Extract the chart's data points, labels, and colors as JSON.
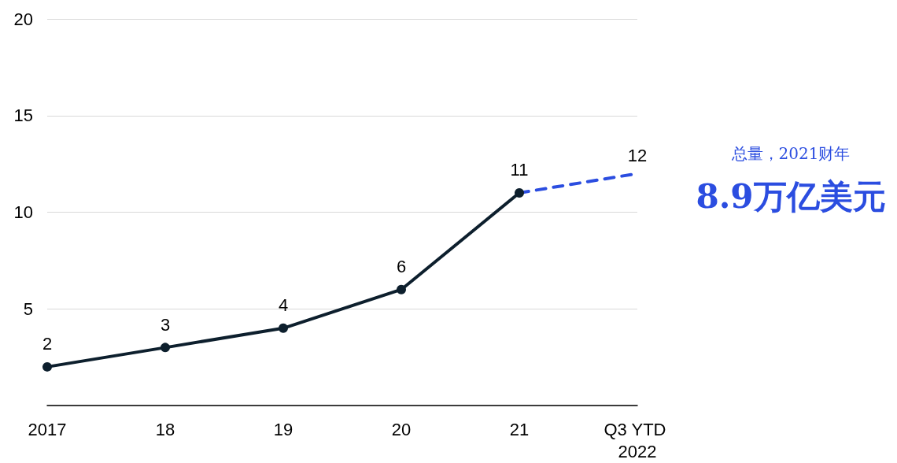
{
  "chart_data": {
    "type": "line",
    "categories": [
      "2017",
      "18",
      "19",
      "20",
      "21",
      "Q3 YTD 2022"
    ],
    "series": [
      {
        "color": "#0d1f2d",
        "values": [
          2,
          3,
          4,
          6,
          11,
          null
        ],
        "value_labels": [
          "2",
          "3",
          "4",
          "6",
          "11",
          null
        ],
        "marker": "circle",
        "line_style": "solid"
      },
      {
        "color": "#2b4de0",
        "values": [
          null,
          null,
          null,
          null,
          11,
          12
        ],
        "value_labels": [
          null,
          null,
          null,
          null,
          null,
          "12"
        ],
        "marker": "none",
        "line_style": "dashed"
      }
    ],
    "ylim": [
      0,
      20
    ],
    "yticks": [
      5,
      10,
      15,
      20
    ],
    "grid": "y",
    "annotations": [
      "总量，2021财年",
      "8.9万亿美元"
    ]
  }
}
